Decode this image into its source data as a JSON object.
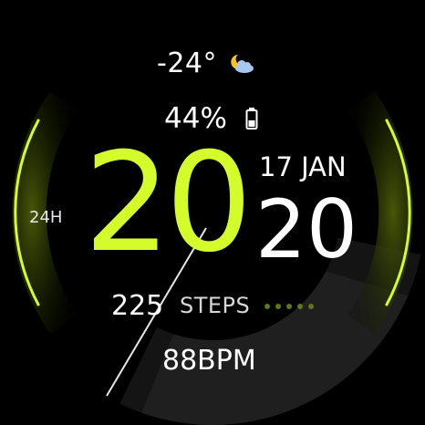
{
  "colors": {
    "accent": "#d4fb2a",
    "text": "#ffffff",
    "background": "#000000",
    "arc": "#c8ef1c"
  },
  "weather": {
    "temperature": "-24°",
    "icon": "moon-cloud-icon"
  },
  "battery": {
    "level": "44%",
    "icon": "battery-icon",
    "fraction": 0.44
  },
  "time": {
    "hours": "20",
    "minutes": "20",
    "format": "24H"
  },
  "date": {
    "text": "17 JAN"
  },
  "steps": {
    "value": "225",
    "label": "STEPS"
  },
  "heart_rate": {
    "value": "88BPM"
  },
  "progress_dots": {
    "count": 5,
    "lit": 0
  }
}
